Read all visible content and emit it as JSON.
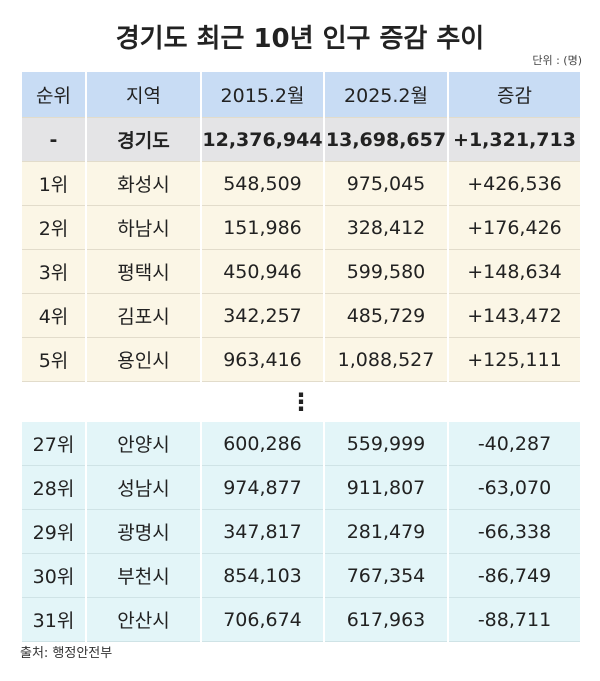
{
  "header": {
    "title": "경기도 최근 10년 인구 증감 추이",
    "unit": "단위 : (명)"
  },
  "table": {
    "columns": [
      "순위",
      "지역",
      "2015.2월",
      "2025.2월",
      "증감"
    ],
    "total": [
      "-",
      "경기도",
      "12,376,944",
      "13,698,657",
      "+1,321,713"
    ],
    "top_rows": [
      [
        "1위",
        "화성시",
        "548,509",
        "975,045",
        "+426,536"
      ],
      [
        "2위",
        "하남시",
        "151,986",
        "328,412",
        "+176,426"
      ],
      [
        "3위",
        "평택시",
        "450,946",
        "599,580",
        "+148,634"
      ],
      [
        "4위",
        "김포시",
        "342,257",
        "485,729",
        "+143,472"
      ],
      [
        "5위",
        "용인시",
        "963,416",
        "1,088,527",
        "+125,111"
      ]
    ],
    "separator": "⋮",
    "bottom_rows": [
      [
        "27위",
        "안양시",
        "600,286",
        "559,999",
        "-40,287"
      ],
      [
        "28위",
        "성남시",
        "974,877",
        "911,807",
        "-63,070"
      ],
      [
        "29위",
        "광명시",
        "347,817",
        "281,479",
        "-66,338"
      ],
      [
        "30위",
        "부천시",
        "854,103",
        "767,354",
        "-86,749"
      ],
      [
        "31위",
        "안산시",
        "706,674",
        "617,963",
        "-88,711"
      ]
    ]
  },
  "source": "출처: 행정안전부"
}
